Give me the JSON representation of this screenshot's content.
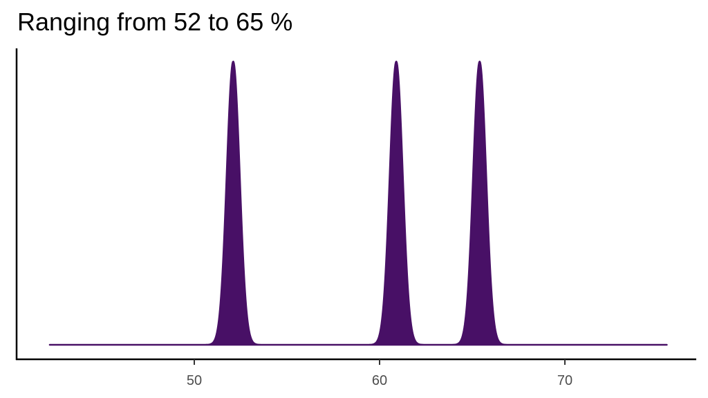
{
  "title": "Ranging from 52 to 65 %",
  "colors": {
    "fill": "#481066",
    "axis": "#000000",
    "tick_label": "#4d4d4d"
  },
  "chart_data": {
    "type": "area",
    "title": "Ranging from 52 to 65 %",
    "xlabel": "",
    "ylabel": "",
    "xlim": [
      41.5,
      77
    ],
    "x_ticks": [
      50,
      60,
      70
    ],
    "x_tick_labels": [
      "50",
      "60",
      "70"
    ],
    "y_ticks": [],
    "grid": false,
    "legend": null,
    "x_range_drawn": [
      42.2,
      75.5
    ],
    "series": [
      {
        "name": "density",
        "peaks": [
          {
            "center": 52.1,
            "sd": 0.35,
            "relative_height": 1.0
          },
          {
            "center": 60.9,
            "sd": 0.35,
            "relative_height": 1.0
          },
          {
            "center": 65.4,
            "sd": 0.35,
            "relative_height": 1.0
          }
        ]
      }
    ]
  }
}
